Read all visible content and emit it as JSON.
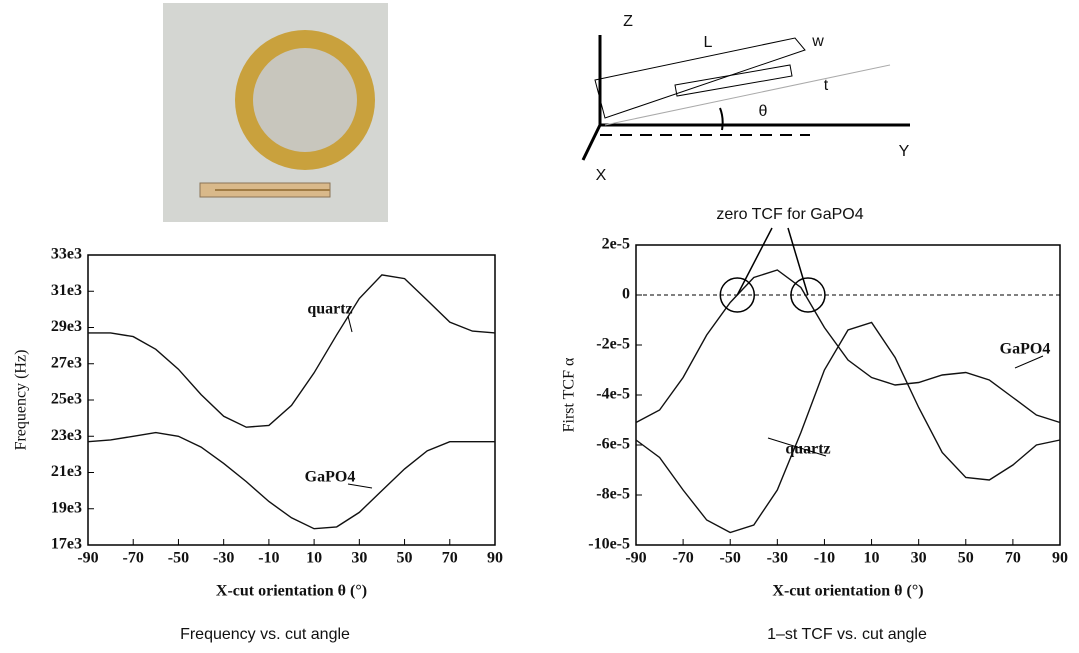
{
  "diagram": {
    "labels": [
      "Z",
      "L",
      "w",
      "t",
      "θ",
      "Y",
      "X"
    ]
  },
  "chart_data": [
    {
      "type": "line",
      "caption": "Frequency vs. cut angle",
      "xlabel": "X-cut orientation  θ  (°)",
      "ylabel": "Frequency (Hz)",
      "x": [
        -90,
        -80,
        -70,
        -60,
        -50,
        -40,
        -30,
        -20,
        -10,
        0,
        10,
        20,
        30,
        40,
        50,
        60,
        70,
        80,
        90
      ],
      "series": [
        {
          "name": "quartz",
          "color": "#111111",
          "values": [
            28700,
            28700,
            28500,
            27800,
            26700,
            25300,
            24100,
            23500,
            23600,
            24700,
            26500,
            28600,
            30600,
            31900,
            31700,
            30500,
            29300,
            28800,
            28700
          ]
        },
        {
          "name": "GaPO4",
          "color": "#111111",
          "values": [
            22700,
            22800,
            23000,
            23200,
            23000,
            22400,
            21500,
            20500,
            19400,
            18500,
            17900,
            18000,
            18800,
            20000,
            21200,
            22200,
            22700,
            22700,
            22700
          ]
        }
      ],
      "xlim": [
        -90,
        90
      ],
      "xticks": [
        -90,
        -70,
        -50,
        -30,
        -10,
        10,
        30,
        50,
        70,
        90
      ],
      "ylim": [
        17000,
        33000
      ],
      "yticks": [
        {
          "value": 17000,
          "label": "17e3"
        },
        {
          "value": 19000,
          "label": "19e3"
        },
        {
          "value": 21000,
          "label": "21e3"
        },
        {
          "value": 23000,
          "label": "23e3"
        },
        {
          "value": 25000,
          "label": "25e3"
        },
        {
          "value": 27000,
          "label": "27e3"
        },
        {
          "value": 29000,
          "label": "29e3"
        },
        {
          "value": 31000,
          "label": "31e3"
        },
        {
          "value": 33000,
          "label": "33e3"
        }
      ]
    },
    {
      "type": "line",
      "caption": "1–st TCF vs. cut angle",
      "xlabel": "X-cut orientation  θ  (°)",
      "ylabel": "First TCF α",
      "annotation": "zero TCF  for GaPO4",
      "x": [
        -90,
        -80,
        -70,
        -60,
        -50,
        -40,
        -30,
        -20,
        -10,
        0,
        10,
        20,
        30,
        40,
        50,
        60,
        70,
        80,
        90
      ],
      "series": [
        {
          "name": "quartz",
          "color": "#111111",
          "values": [
            -5.8e-05,
            -6.5e-05,
            -7.8e-05,
            -9e-05,
            -9.5e-05,
            -9.2e-05,
            -7.8e-05,
            -5.5e-05,
            -3e-05,
            -1.4e-05,
            -1.1e-05,
            -2.5e-05,
            -4.5e-05,
            -6.3e-05,
            -7.3e-05,
            -7.4e-05,
            -6.8e-05,
            -6e-05,
            -5.8e-05
          ]
        },
        {
          "name": "GaPO4",
          "color": "#111111",
          "values": [
            -5.1e-05,
            -4.6e-05,
            -3.3e-05,
            -1.6e-05,
            -3e-06,
            7e-06,
            1e-05,
            3e-06,
            -1.3e-05,
            -2.6e-05,
            -3.3e-05,
            -3.6e-05,
            -3.5e-05,
            -3.2e-05,
            -3.1e-05,
            -3.4e-05,
            -4.1e-05,
            -4.8e-05,
            -5.1e-05
          ]
        }
      ],
      "xlim": [
        -90,
        90
      ],
      "xticks": [
        -90,
        -70,
        -50,
        -30,
        -10,
        10,
        30,
        50,
        70,
        90
      ],
      "ylim": [
        -0.0001,
        2e-05
      ],
      "yticks": [
        {
          "value": -0.0001,
          "label": "-10e-5"
        },
        {
          "value": -8e-05,
          "label": "-8e-5"
        },
        {
          "value": -6e-05,
          "label": "-6e-5"
        },
        {
          "value": -4e-05,
          "label": "-4e-5"
        },
        {
          "value": -2e-05,
          "label": "-2e-5"
        },
        0,
        {
          "value": 2e-05,
          "label": "2e-5"
        }
      ],
      "zero_line": true
    }
  ]
}
